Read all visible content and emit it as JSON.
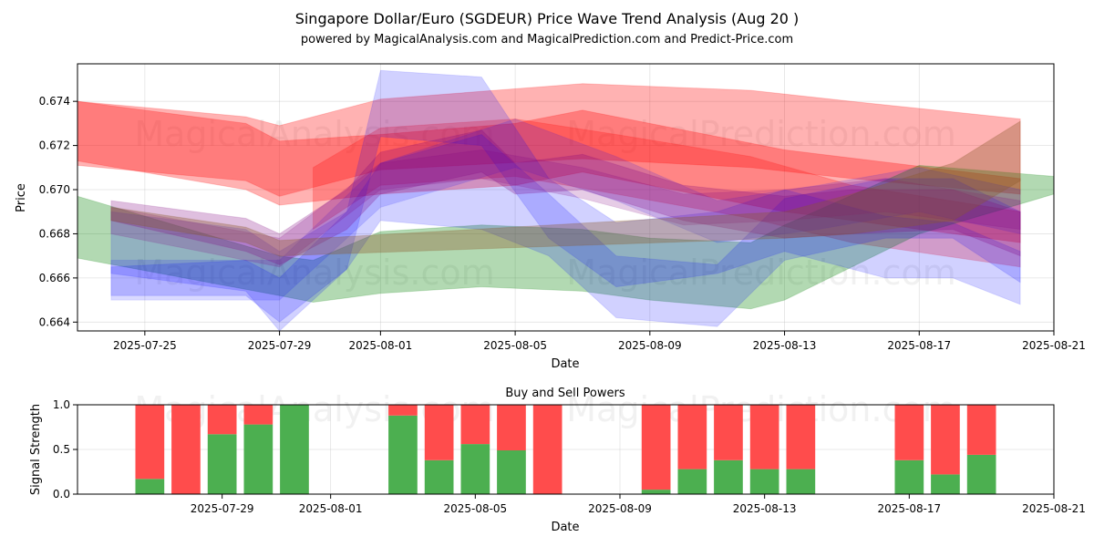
{
  "title": "Singapore Dollar/Euro (SGDEUR) Price Wave Trend Analysis (Aug 20 )",
  "subtitle": "powered by MagicalAnalysis.com and MagicalPrediction.com and Predict-Price.com",
  "watermarks": [
    "MagicalAnalysis.com",
    "MagicalPrediction.com"
  ],
  "colors": {
    "red": "#ff0000",
    "green": "#008000",
    "blue": "#0000ff",
    "purple": "#800080",
    "buy": "#4caf50",
    "sell": "#ff4c4c"
  },
  "chart_data": [
    {
      "type": "area",
      "title": "",
      "xlabel": "Date",
      "ylabel": "Price",
      "xlim": [
        "2025-07-23",
        "2025-08-21"
      ],
      "ylim": [
        0.6636,
        0.6757
      ],
      "x_ticks": [
        "2025-07-25",
        "2025-07-29",
        "2025-08-01",
        "2025-08-05",
        "2025-08-09",
        "2025-08-13",
        "2025-08-17",
        "2025-08-21"
      ],
      "y_ticks": [
        0.664,
        0.666,
        0.668,
        0.67,
        0.672,
        0.674
      ],
      "y_tick_labels": [
        "0.664",
        "0.666",
        "0.668",
        "0.670",
        "0.672",
        "0.674"
      ],
      "series": [
        {
          "name": "red-wave-1",
          "color": "red",
          "opacity": 0.3,
          "x": [
            "2025-07-23",
            "2025-07-28",
            "2025-07-29",
            "2025-08-01",
            "2025-08-07",
            "2025-08-12",
            "2025-08-15",
            "2025-08-20"
          ],
          "upper": [
            0.674,
            0.6733,
            0.6729,
            0.6741,
            0.6748,
            0.6745,
            0.674,
            0.6732
          ],
          "lower": [
            0.6711,
            0.6704,
            0.6697,
            0.6709,
            0.6714,
            0.671,
            0.6705,
            0.6698
          ]
        },
        {
          "name": "red-wave-2",
          "color": "red",
          "opacity": 0.3,
          "x": [
            "2025-07-23",
            "2025-07-28",
            "2025-07-29",
            "2025-08-01",
            "2025-08-05",
            "2025-08-07",
            "2025-08-13",
            "2025-08-20"
          ],
          "upper": [
            0.674,
            0.673,
            0.6722,
            0.6725,
            0.673,
            0.6736,
            0.6718,
            0.6705
          ],
          "lower": [
            0.6713,
            0.67,
            0.6693,
            0.6698,
            0.6702,
            0.6708,
            0.669,
            0.6676
          ]
        },
        {
          "name": "red-wave-3",
          "color": "red",
          "opacity": 0.25,
          "x": [
            "2025-07-30",
            "2025-08-01",
            "2025-08-05",
            "2025-08-08",
            "2025-08-12",
            "2025-08-15",
            "2025-08-20"
          ],
          "upper": [
            0.671,
            0.6728,
            0.6732,
            0.6725,
            0.6715,
            0.6702,
            0.669
          ],
          "lower": [
            0.6682,
            0.6702,
            0.6706,
            0.6698,
            0.6687,
            0.6676,
            0.6665
          ]
        },
        {
          "name": "green-wave",
          "color": "green",
          "opacity": 0.3,
          "x": [
            "2025-07-23",
            "2025-07-29",
            "2025-07-30",
            "2025-08-01",
            "2025-08-04",
            "2025-08-07",
            "2025-08-09",
            "2025-08-12",
            "2025-08-13",
            "2025-08-17",
            "2025-08-21"
          ],
          "upper": [
            0.6697,
            0.667,
            0.6668,
            0.6681,
            0.6684,
            0.6682,
            0.6678,
            0.6676,
            0.6684,
            0.6711,
            0.6706
          ],
          "lower": [
            0.6669,
            0.6652,
            0.6649,
            0.6653,
            0.6656,
            0.6654,
            0.665,
            0.6646,
            0.665,
            0.668,
            0.6698
          ]
        },
        {
          "name": "blue-wave-1",
          "color": "blue",
          "opacity": 0.18,
          "x": [
            "2025-07-24",
            "2025-07-28",
            "2025-07-29",
            "2025-07-31",
            "2025-08-01",
            "2025-08-04",
            "2025-08-06",
            "2025-08-08",
            "2025-08-11",
            "2025-08-13",
            "2025-08-16",
            "2025-08-18",
            "2025-08-20"
          ],
          "upper": [
            0.6665,
            0.6668,
            0.666,
            0.669,
            0.6754,
            0.6751,
            0.6705,
            0.6685,
            0.669,
            0.67,
            0.6688,
            0.6685,
            0.6672
          ],
          "lower": [
            0.6652,
            0.6652,
            0.664,
            0.6664,
            0.6724,
            0.672,
            0.6678,
            0.6656,
            0.6662,
            0.6672,
            0.666,
            0.666,
            0.6648
          ]
        },
        {
          "name": "blue-wave-2",
          "color": "blue",
          "opacity": 0.18,
          "x": [
            "2025-07-24",
            "2025-07-28",
            "2025-07-29",
            "2025-07-31",
            "2025-08-01",
            "2025-08-04",
            "2025-08-06",
            "2025-08-08",
            "2025-08-11",
            "2025-08-13",
            "2025-08-16",
            "2025-08-18",
            "2025-08-20"
          ],
          "upper": [
            0.669,
            0.6682,
            0.6672,
            0.669,
            0.6712,
            0.6725,
            0.6698,
            0.667,
            0.6666,
            0.6696,
            0.6705,
            0.6705,
            0.669
          ],
          "lower": [
            0.6662,
            0.6654,
            0.6636,
            0.6664,
            0.6686,
            0.6682,
            0.667,
            0.6642,
            0.6638,
            0.6668,
            0.6678,
            0.6678,
            0.6658
          ]
        },
        {
          "name": "blue-wave-3",
          "color": "blue",
          "opacity": 0.15,
          "x": [
            "2025-07-24",
            "2025-07-29",
            "2025-08-01",
            "2025-08-05",
            "2025-08-08",
            "2025-08-11",
            "2025-08-14",
            "2025-08-17",
            "2025-08-20"
          ],
          "upper": [
            0.6668,
            0.6668,
            0.6712,
            0.6732,
            0.6715,
            0.6695,
            0.6702,
            0.671,
            0.67
          ],
          "lower": [
            0.665,
            0.665,
            0.6692,
            0.671,
            0.6695,
            0.6676,
            0.6682,
            0.669,
            0.668
          ]
        },
        {
          "name": "purple-wave-1",
          "color": "purple",
          "opacity": 0.25,
          "x": [
            "2025-07-24",
            "2025-07-28",
            "2025-07-29",
            "2025-07-31",
            "2025-08-01",
            "2025-08-04",
            "2025-08-05",
            "2025-08-07",
            "2025-08-10",
            "2025-08-13",
            "2025-08-15",
            "2025-08-18",
            "2025-08-20"
          ],
          "upper": [
            0.6695,
            0.6687,
            0.668,
            0.67,
            0.6717,
            0.6727,
            0.6712,
            0.6716,
            0.6702,
            0.6697,
            0.67,
            0.67,
            0.669
          ],
          "lower": [
            0.6686,
            0.6672,
            0.6666,
            0.6682,
            0.6698,
            0.6708,
            0.6698,
            0.67,
            0.6686,
            0.6678,
            0.668,
            0.6682,
            0.667
          ]
        },
        {
          "name": "purple-wave-2",
          "color": "purple",
          "opacity": 0.2,
          "x": [
            "2025-07-24",
            "2025-07-29",
            "2025-08-01",
            "2025-08-04",
            "2025-08-07",
            "2025-08-10",
            "2025-08-13",
            "2025-08-16",
            "2025-08-20"
          ],
          "upper": [
            0.6692,
            0.6678,
            0.6712,
            0.6718,
            0.671,
            0.6698,
            0.67,
            0.6705,
            0.6695
          ],
          "lower": [
            0.668,
            0.6665,
            0.67,
            0.6705,
            0.6696,
            0.6684,
            0.6686,
            0.669,
            0.6682
          ]
        },
        {
          "name": "brown-wave",
          "color": "#8b5a2b",
          "opacity": 0.35,
          "x": [
            "2025-07-24",
            "2025-07-28",
            "2025-07-29",
            "2025-08-13",
            "2025-08-15",
            "2025-08-18",
            "2025-08-20"
          ],
          "upper": [
            0.6692,
            0.6683,
            0.6677,
            0.669,
            0.6698,
            0.6712,
            0.6731
          ],
          "lower": [
            0.6686,
            0.6676,
            0.667,
            0.6678,
            0.668,
            0.6686,
            0.6704
          ]
        }
      ]
    },
    {
      "type": "bar",
      "title": "Buy and Sell Powers",
      "xlabel": "Date",
      "ylabel": "Signal Strength",
      "xlim": [
        "2025-07-25",
        "2025-08-21"
      ],
      "ylim": [
        0,
        1
      ],
      "x_ticks": [
        "2025-07-29",
        "2025-08-01",
        "2025-08-05",
        "2025-08-09",
        "2025-08-13",
        "2025-08-17",
        "2025-08-21"
      ],
      "y_ticks": [
        0.0,
        0.5,
        1.0
      ],
      "y_tick_labels": [
        "0.0",
        "0.5",
        "1.0"
      ],
      "categories": [
        "2025-07-27",
        "2025-07-28",
        "2025-07-29",
        "2025-07-30",
        "2025-07-31",
        "2025-08-03",
        "2025-08-04",
        "2025-08-05",
        "2025-08-06",
        "2025-08-07",
        "2025-08-10",
        "2025-08-11",
        "2025-08-12",
        "2025-08-13",
        "2025-08-14",
        "2025-08-17",
        "2025-08-18",
        "2025-08-19"
      ],
      "series": [
        {
          "name": "Buy",
          "color": "buy",
          "values": [
            0.17,
            0.0,
            0.67,
            0.78,
            1.0,
            0.88,
            0.38,
            0.56,
            0.49,
            0.0,
            0.05,
            0.28,
            0.38,
            0.28,
            0.28,
            0.38,
            0.22,
            0.44
          ]
        },
        {
          "name": "Sell",
          "color": "sell",
          "values": [
            0.83,
            1.0,
            0.33,
            0.22,
            0.0,
            0.12,
            0.62,
            0.44,
            0.51,
            1.0,
            0.95,
            0.72,
            0.62,
            0.72,
            0.72,
            0.62,
            0.78,
            0.56
          ]
        }
      ]
    }
  ]
}
